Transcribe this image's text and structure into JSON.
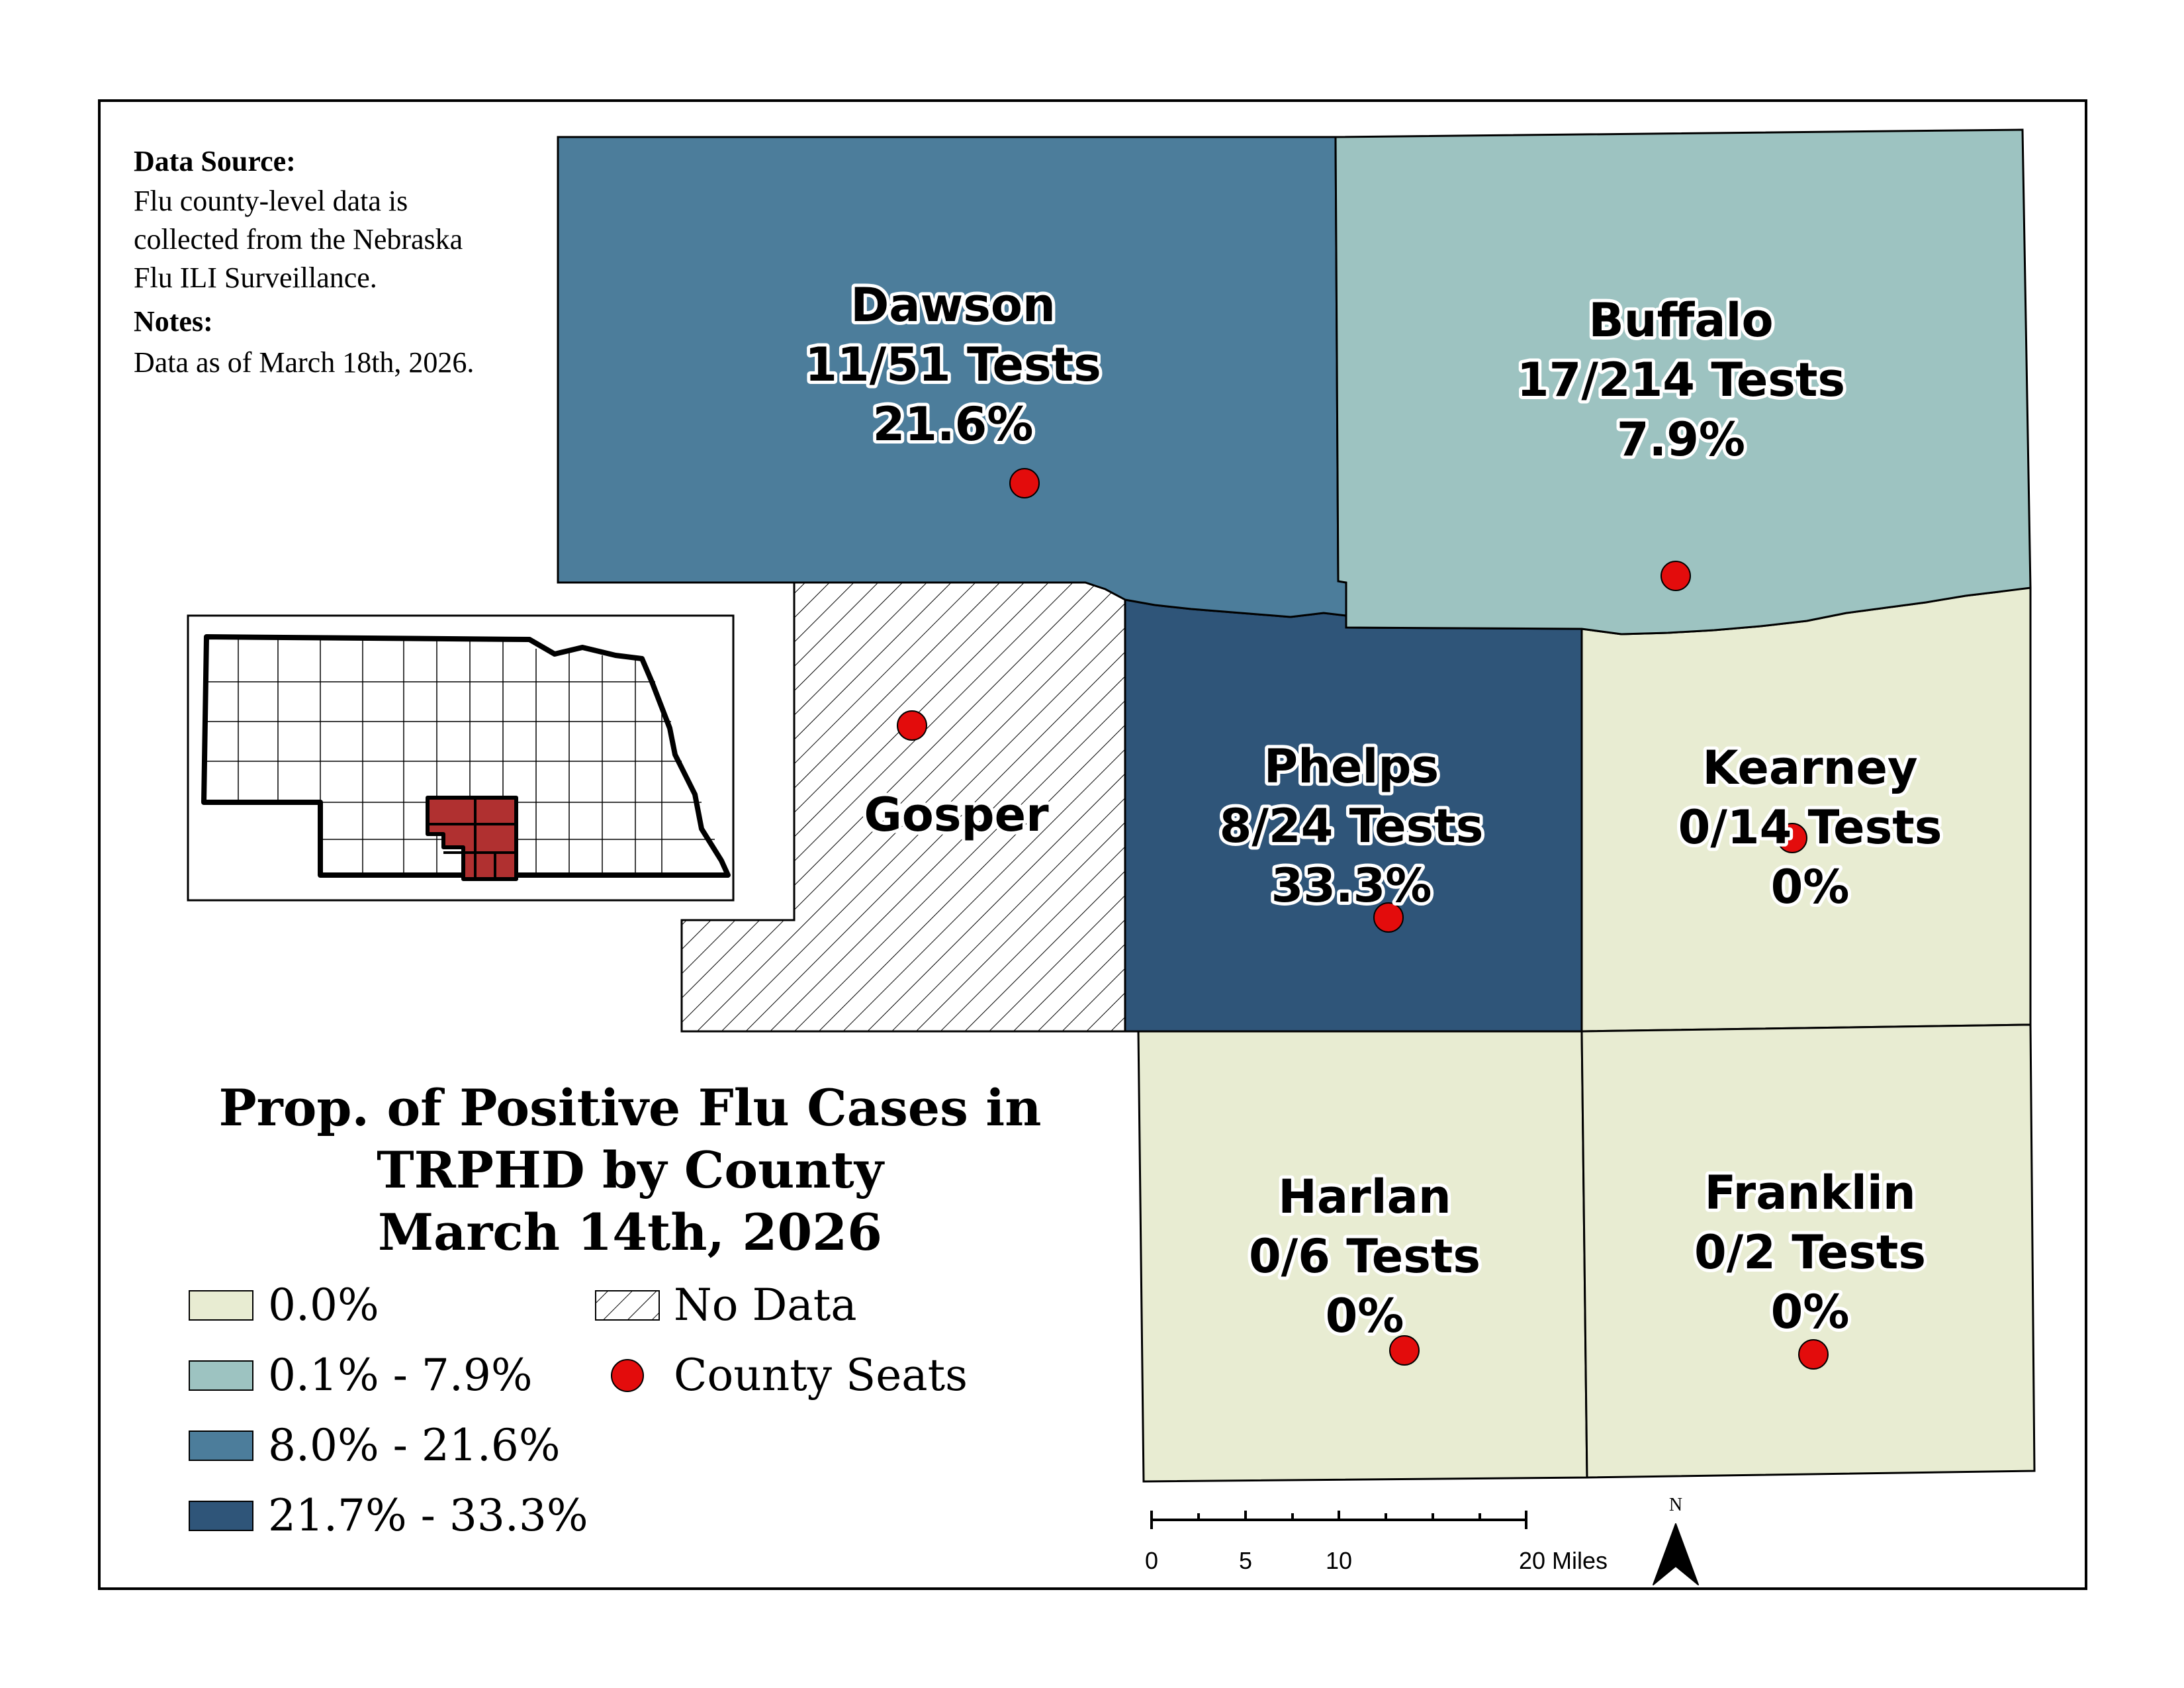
{
  "title": {
    "line1": "Prop. of Positive Flu Cases in",
    "line2": "TRPHD by County",
    "line3": "March 14th, 2026"
  },
  "info": {
    "source_heading": "Data Source:",
    "source_line1": "Flu county-level data is",
    "source_line2": "collected from the Nebraska",
    "source_line3": "Flu ILI Surveillance.",
    "notes_heading": "Notes:",
    "notes_line1": "Data as of March 18th, 2026."
  },
  "counties": {
    "dawson": {
      "name": "Dawson",
      "tests": "11/51 Tests",
      "pct": "21.6%"
    },
    "buffalo": {
      "name": "Buffalo",
      "tests": "17/214 Tests",
      "pct": "7.9%"
    },
    "gosper": {
      "name": "Gosper"
    },
    "phelps": {
      "name": "Phelps",
      "tests": "8/24 Tests",
      "pct": "33.3%"
    },
    "kearney": {
      "name": "Kearney",
      "tests": "0/14 Tests",
      "pct": "0%"
    },
    "harlan": {
      "name": "Harlan",
      "tests": "0/6 Tests",
      "pct": "0%"
    },
    "franklin": {
      "name": "Franklin",
      "tests": "0/2 Tests",
      "pct": "0%"
    }
  },
  "legend": {
    "class1": "0.0%",
    "class2": "0.1% - 7.9%",
    "class3": "8.0% - 21.6%",
    "class4": "21.7% - 33.3%",
    "no_data": "No Data",
    "county_seats": "County Seats"
  },
  "scale_bar": {
    "t0": "0",
    "t1": "5",
    "t2": "10",
    "t3": "20 Miles"
  },
  "north_arrow": {
    "label": "N"
  },
  "colors": {
    "class1": "#e8ecd2",
    "class2": "#9dc3c1",
    "class3": "#4c7d9b",
    "class4": "#2f5579",
    "seat": "#e30c0c",
    "highlight": "#b03030"
  }
}
